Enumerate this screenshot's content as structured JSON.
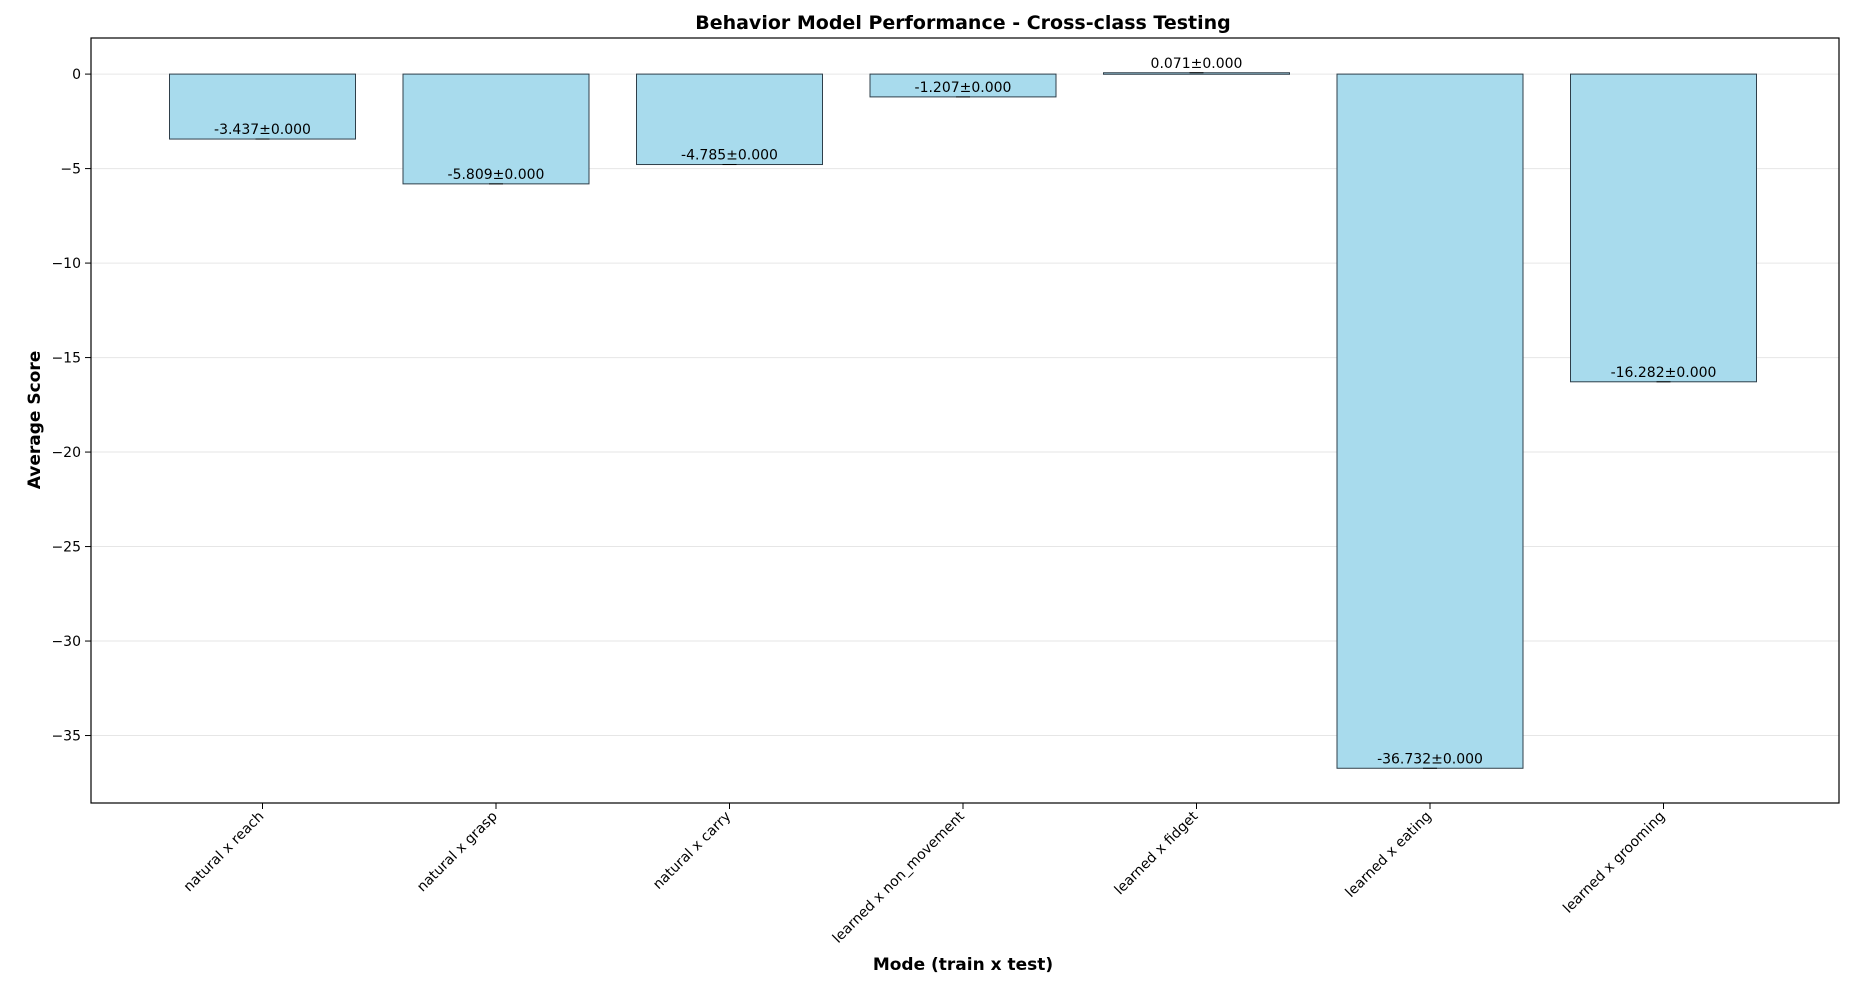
{
  "chart_data": {
    "type": "bar",
    "title": "Behavior Model Performance - Cross-class Testing",
    "xlabel": "Mode (train x test)",
    "ylabel": "Average Score",
    "categories": [
      "natural x reach",
      "natural x grasp",
      "natural x carry",
      "learned x non_movement",
      "learned x fidget",
      "learned x eating",
      "learned x grooming"
    ],
    "values": [
      -3.437,
      -5.809,
      -4.785,
      -1.207,
      0.071,
      -36.732,
      -16.282
    ],
    "errors": [
      0.0,
      0.0,
      0.0,
      0.0,
      0.0,
      0.0,
      0.0
    ],
    "value_labels": [
      "-3.437±0.000",
      "-5.809±0.000",
      "-4.785±0.000",
      "-1.207±0.000",
      "0.071±0.000",
      "-36.732±0.000",
      "-16.282±0.000"
    ],
    "ylim": [
      -38.57,
      1.91
    ],
    "yticks": [
      0,
      -5,
      -10,
      -15,
      -20,
      -25,
      -30,
      -35
    ],
    "ytick_labels": [
      "0",
      "−5",
      "−10",
      "−15",
      "−20",
      "−25",
      "−30",
      "−35"
    ],
    "grid": "horizontal",
    "colors": {
      "bar_fill": "#a8dbed",
      "bar_edge": "#2f3f4a",
      "grid": "#e6e6e6"
    }
  }
}
